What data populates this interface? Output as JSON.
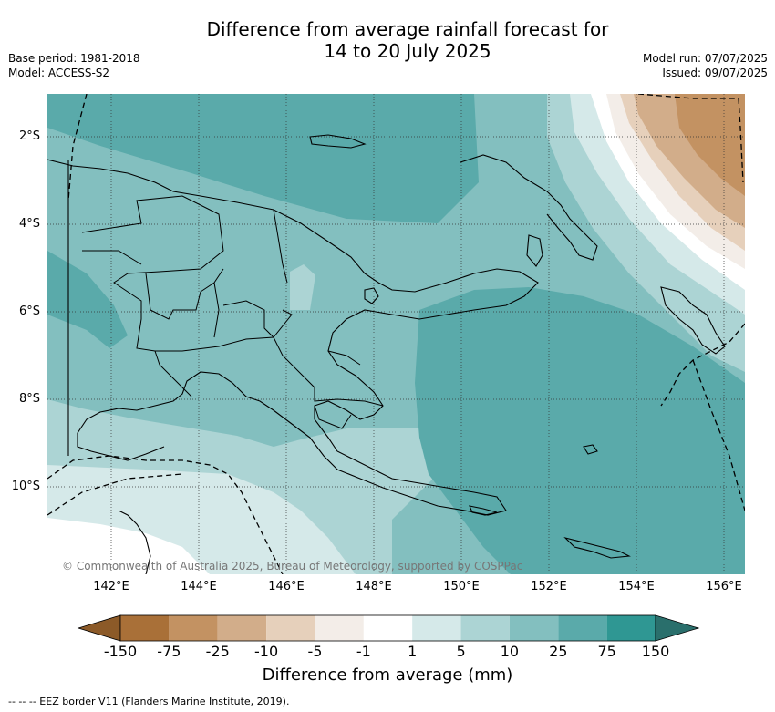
{
  "title_line1": "Difference from average rainfall forecast for",
  "title_line2": "14 to 20 July 2025",
  "meta": {
    "base_period": "Base period: 1981-2018",
    "model": "Model: ACCESS-S2",
    "model_run": "Model run: 07/07/2025",
    "issued": "Issued: 09/07/2025"
  },
  "copyright": "© Commonwealth of Australia 2025, Bureau of Meteorology, supported by COSPPac",
  "lat_ticks": [
    "2°S",
    "4°S",
    "6°S",
    "8°S",
    "10°S"
  ],
  "lon_ticks": [
    "142°E",
    "144°E",
    "146°E",
    "148°E",
    "150°E",
    "152°E",
    "154°E",
    "156°E"
  ],
  "colorbar": {
    "title": "Difference from average (mm)",
    "labels": [
      "-150",
      "-75",
      "-25",
      "-10",
      "-5",
      "-1",
      "1",
      "5",
      "10",
      "25",
      "75",
      "150"
    ],
    "colors": [
      "#8c5a28",
      "#a97038",
      "#c39262",
      "#d2ad8a",
      "#e6d0bb",
      "#f3ede8",
      "#ffffff",
      "#d5e9e9",
      "#acd4d4",
      "#83bfbf",
      "#5aaaaa",
      "#2f9793",
      "#2a6f6c"
    ]
  },
  "footer": "-- -- -- EEZ border V11 (Flanders Marine Institute, 2019)."
}
